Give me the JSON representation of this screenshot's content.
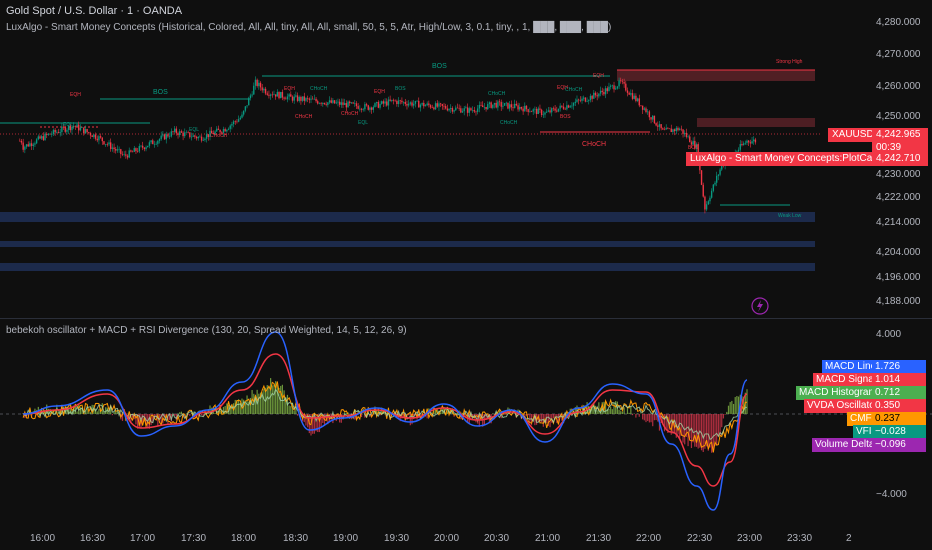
{
  "header": {
    "symbol_title": "Gold Spot / U.S. Dollar · 1 · OANDA",
    "indicator_legend": "LuxAlgo - Smart Money Concepts (Historical, Colored, All, All, tiny, All, All, small, 50, 5, 5, Atr, High/Low, 3, 0.1, tiny, , 1, ███, ███, ███)"
  },
  "price_axis": {
    "ticks": [
      "4,280.000",
      "4,270.000",
      "4,260.000",
      "4,250.000",
      "4,230.000",
      "4,222.000",
      "4,214.000",
      "4,204.000",
      "4,196.000",
      "4,188.000"
    ]
  },
  "price_tags": {
    "symbol": "XAUUSD",
    "last_price": "4,242.965",
    "countdown": "00:39",
    "plot_label": "LuxAlgo - Smart Money Concepts:PlotCandle",
    "plot_value": "4,242.710"
  },
  "smc_labels": {
    "bos": "BOS",
    "choch": "CHoCH",
    "eqh": "EQH",
    "eql": "EQL",
    "strong_high": "Strong High",
    "weak_low": "Weak Low"
  },
  "oscillator": {
    "title": "bebekoh oscillator + MACD + RSI Divergence (130, 20, Spread Weighted, 14, 5, 12, 26, 9)",
    "axis_ticks": [
      "4.000",
      "−4.000"
    ],
    "legend": [
      {
        "name": "MACD Line",
        "value": "1.726",
        "color": "#2962ff"
      },
      {
        "name": "MACD Signal",
        "value": "1.014",
        "color": "#f23645"
      },
      {
        "name": "MACD Histogram",
        "value": "0.712",
        "color": "#4caf50"
      },
      {
        "name": "VVDA Oscillator",
        "value": "0.350",
        "color": "#f23645"
      },
      {
        "name": "CMF",
        "value": "0.237",
        "color": "#ff9800"
      },
      {
        "name": "VFI",
        "value": "−0.028",
        "color": "#089981"
      },
      {
        "name": "Volume Delta",
        "value": "−0.096",
        "color": "#9c27b0"
      }
    ]
  },
  "time_axis": {
    "ticks": [
      "16:00",
      "16:30",
      "17:00",
      "17:30",
      "18:00",
      "18:30",
      "19:00",
      "19:30",
      "20:00",
      "20:30",
      "21:00",
      "21:30",
      "22:00",
      "22:30",
      "23:00",
      "23:30",
      "2"
    ]
  },
  "chart_data": [
    {
      "type": "candlestick",
      "x_range": [
        "15:48",
        "23:05"
      ],
      "ylim": [
        4185,
        4285
      ],
      "close_path": [
        [
          "15:50",
          4241
        ],
        [
          "16:05",
          4245
        ],
        [
          "16:20",
          4248
        ],
        [
          "16:35",
          4244
        ],
        [
          "16:50",
          4238
        ],
        [
          "17:05",
          4242
        ],
        [
          "17:20",
          4246
        ],
        [
          "17:35",
          4244
        ],
        [
          "17:50",
          4247
        ],
        [
          "18:00",
          4251
        ],
        [
          "18:08",
          4262
        ],
        [
          "18:15",
          4259
        ],
        [
          "18:30",
          4257
        ],
        [
          "18:45",
          4256
        ],
        [
          "19:00",
          4255
        ],
        [
          "19:15",
          4254
        ],
        [
          "19:30",
          4256
        ],
        [
          "19:45",
          4255
        ],
        [
          "20:00",
          4254
        ],
        [
          "20:15",
          4253
        ],
        [
          "20:30",
          4255
        ],
        [
          "20:45",
          4254
        ],
        [
          "21:00",
          4252
        ],
        [
          "21:15",
          4255
        ],
        [
          "21:30",
          4258
        ],
        [
          "21:45",
          4262
        ],
        [
          "22:00",
          4253
        ],
        [
          "22:10",
          4246
        ],
        [
          "22:20",
          4247
        ],
        [
          "22:30",
          4241
        ],
        [
          "22:35",
          4221
        ],
        [
          "22:45",
          4235
        ],
        [
          "23:00",
          4243
        ]
      ]
    },
    {
      "type": "line",
      "ylim": [
        -6,
        6
      ],
      "series": [
        {
          "name": "MACD Line",
          "x": [
            "15:50",
            "16:10",
            "16:40",
            "17:00",
            "17:20",
            "17:40",
            "18:00",
            "18:20",
            "18:40",
            "19:00",
            "19:20",
            "19:40",
            "20:00",
            "20:20",
            "20:40",
            "21:00",
            "21:20",
            "21:40",
            "22:00",
            "22:15",
            "22:30",
            "22:40",
            "22:50",
            "23:00"
          ],
          "values": [
            0,
            0.4,
            1.2,
            -1.1,
            -0.6,
            0.2,
            1.6,
            4.1,
            -0.8,
            -0.2,
            0.3,
            -0.4,
            0.5,
            -0.6,
            0.2,
            -1.4,
            0.3,
            1.5,
            1.0,
            -1.5,
            -3.6,
            -4.8,
            -2.0,
            1.7
          ]
        },
        {
          "name": "MACD Signal",
          "x": [
            "15:50",
            "16:10",
            "16:40",
            "17:00",
            "17:20",
            "17:40",
            "18:00",
            "18:20",
            "18:40",
            "19:00",
            "19:20",
            "19:40",
            "20:00",
            "20:20",
            "20:40",
            "21:00",
            "21:20",
            "21:40",
            "22:00",
            "22:15",
            "22:30",
            "22:40",
            "22:50",
            "23:00"
          ],
          "values": [
            0,
            0.2,
            1.0,
            -0.7,
            -0.5,
            0.1,
            1.2,
            3.0,
            -0.2,
            -0.1,
            0.2,
            -0.2,
            0.3,
            -0.3,
            0.1,
            -1.0,
            0.1,
            1.2,
            1.1,
            -0.9,
            -2.6,
            -3.6,
            -2.4,
            1.0
          ]
        }
      ]
    }
  ]
}
